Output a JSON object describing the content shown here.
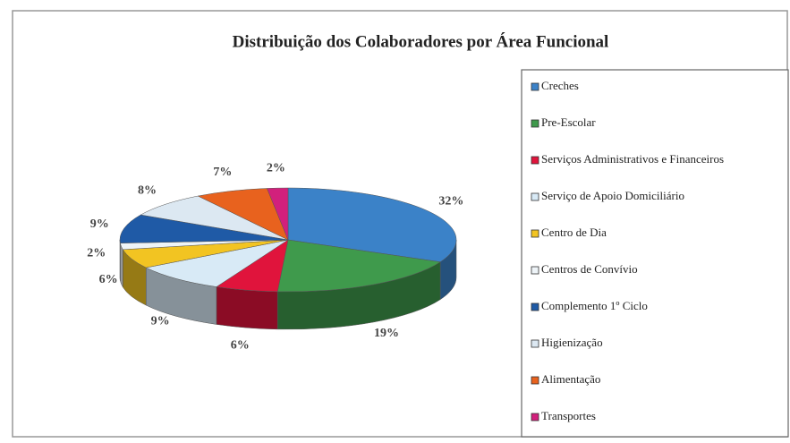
{
  "chart_data": {
    "type": "pie3d",
    "title": "Distribuição dos Colaboradores por Área Funcional",
    "categories": [
      "Creches",
      "Pre-Escolar",
      "Serviços Administrativos e Financeiros",
      "Serviço de Apoio Domiciliário",
      "Centro de Dia",
      "Centros de Convívio",
      "Complemento 1º Ciclo",
      "Higienização",
      "Alimentação",
      "Transportes"
    ],
    "values": [
      32,
      19,
      6,
      9,
      6,
      2,
      9,
      8,
      7,
      2
    ],
    "value_labels": [
      "32%",
      "19%",
      "6%",
      "9%",
      "6%",
      "2%",
      "9%",
      "8%",
      "7%",
      "2%"
    ],
    "colors": [
      "#3b82c8",
      "#3f9a4c",
      "#e0143c",
      "#d8eaf6",
      "#f2c422",
      "#eef4f8",
      "#1f5aa6",
      "#dce8f2",
      "#e8621e",
      "#d2207c"
    ],
    "legend": "right"
  }
}
